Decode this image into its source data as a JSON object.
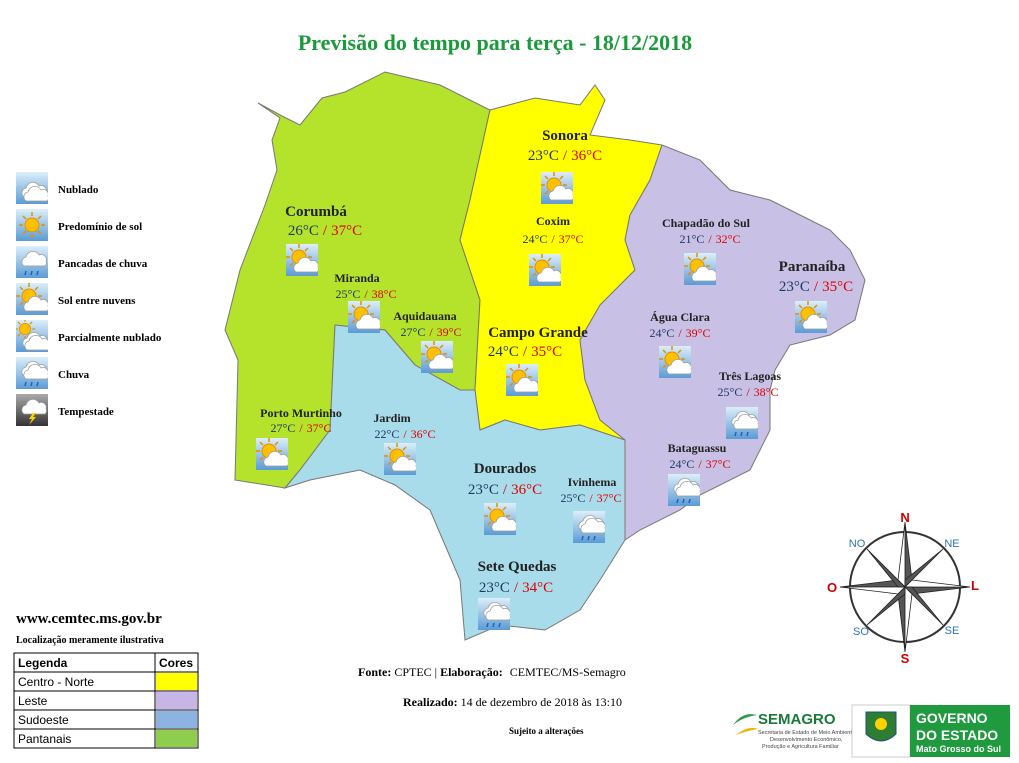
{
  "title": "Previsão do tempo para terça - 18/12/2018",
  "legend_icons": [
    "Nublado",
    "Predomínio de sol",
    "Pancadas de chuva",
    "Sol entre nuvens",
    "Parcialmente nublado",
    "Chuva",
    "Tempestade"
  ],
  "temp_separator": "/",
  "cities": [
    {
      "name": "Sonora",
      "min": "23°C",
      "max": "36°C"
    },
    {
      "name": "Coxim",
      "min": "24°C",
      "max": "37°C"
    },
    {
      "name": "Corumbá",
      "min": "26°C",
      "max": "37°C"
    },
    {
      "name": "Miranda",
      "min": "25°C",
      "max": "38°C"
    },
    {
      "name": "Aquidauana",
      "min": "27°C",
      "max": "39°C"
    },
    {
      "name": "Campo Grande",
      "min": "24°C",
      "max": "35°C"
    },
    {
      "name": "Chapadão do Sul",
      "min": "21°C",
      "max": "32°C"
    },
    {
      "name": "Paranaíba",
      "min": "23°C",
      "max": "35°C"
    },
    {
      "name": "Água Clara",
      "min": "24°C",
      "max": "39°C"
    },
    {
      "name": "Três Lagoas",
      "min": "25°C",
      "max": "38°C"
    },
    {
      "name": "Porto Murtinho",
      "min": "27°C",
      "max": "37°C"
    },
    {
      "name": "Jardim",
      "min": "22°C",
      "max": "36°C"
    },
    {
      "name": "Bataguassu",
      "min": "24°C",
      "max": "37°C"
    },
    {
      "name": "Dourados",
      "min": "23°C",
      "max": "36°C"
    },
    {
      "name": "Ivinhema",
      "min": "25°C",
      "max": "37°C"
    },
    {
      "name": "Sete Quedas",
      "min": "23°C",
      "max": "34°C"
    }
  ],
  "compass": {
    "n": "N",
    "ne": "NE",
    "l": "L",
    "se": "SE",
    "s": "S",
    "so": "SO",
    "o": "O",
    "no": "NO"
  },
  "website": "www.cemtec.ms.gov.br",
  "note": "Localização meramente ilustrativa",
  "legend_table": {
    "header": [
      "Legenda",
      "Cores"
    ],
    "rows": [
      {
        "name": "Centro - Norte",
        "color": "#ffff00"
      },
      {
        "name": "Leste",
        "color": "#c6b5e6"
      },
      {
        "name": "Sudoeste",
        "color": "#8db3e2"
      },
      {
        "name": "Pantanais",
        "color": "#8fce4c"
      }
    ]
  },
  "footer": {
    "source_label": "Fonte:",
    "source": "CPTEC |",
    "made_label": "Elaboração:",
    "made": "CEMTEC/MS-Semagro",
    "done_label": "Realizado:",
    "done": "14 de dezembro de 2018 às 13:10",
    "disclaimer": "Sujeito a alterações"
  },
  "logos": {
    "semagro": "SEMAGRO",
    "semagro_sub": [
      "Secretaria de Estado de Meio Ambiente,",
      "Desenvolvimento Econômico,",
      "Produção e Agricultura Familiar"
    ],
    "gov": [
      "GOVERNO",
      "DO ESTADO"
    ],
    "gov_sub": "Mato Grosso do Sul"
  }
}
